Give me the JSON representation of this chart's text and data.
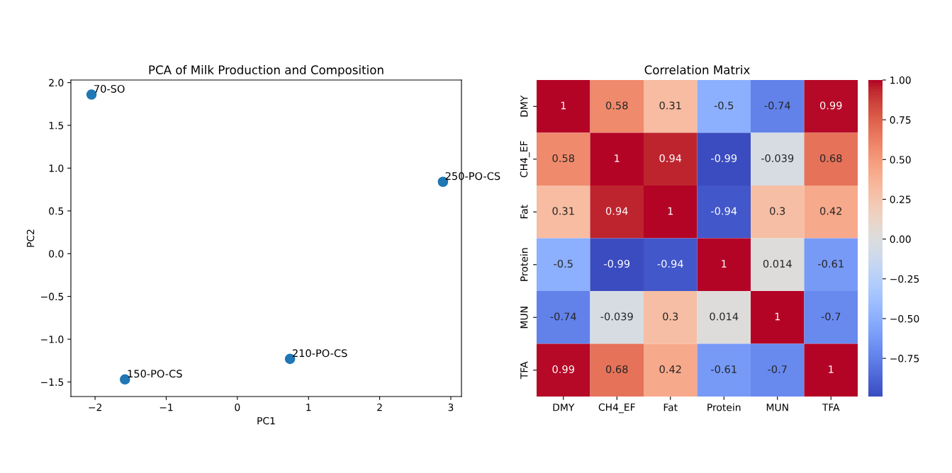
{
  "chart_data": [
    {
      "type": "scatter",
      "title": "PCA of Milk Production and Composition",
      "xlabel": "PC1",
      "ylabel": "PC2",
      "x": [
        -2.05,
        -1.58,
        0.74,
        2.89
      ],
      "series": [
        {
          "color": "#1f77b4",
          "values": [
            1.86,
            -1.47,
            -1.23,
            0.84
          ]
        }
      ],
      "marker": "circle",
      "xlim": [
        -2.34,
        3.15
      ],
      "xticks": [
        {
          "value": -2,
          "label": "−2"
        },
        {
          "value": -1,
          "label": "−1"
        },
        0,
        1,
        2,
        3
      ],
      "ylim": [
        -1.67,
        2.03
      ],
      "yticks": [
        {
          "value": -1.5,
          "label": "−1.5"
        },
        {
          "value": -1,
          "label": "−1.0"
        },
        {
          "value": -0.5,
          "label": "−0.5"
        },
        {
          "value": 0,
          "label": "0.0"
        },
        {
          "value": 0.5,
          "label": "0.5"
        },
        {
          "value": 1,
          "label": "1.0"
        },
        {
          "value": 1.5,
          "label": "1.5"
        },
        {
          "value": 2,
          "label": "2.0"
        }
      ],
      "annotations": [
        {
          "text": "70-SO",
          "x": -2.05,
          "y": 1.86
        },
        {
          "text": "150-PO-CS",
          "x": -1.58,
          "y": -1.47
        },
        {
          "text": "210-PO-CS",
          "x": 0.74,
          "y": -1.23
        },
        {
          "text": "250-PO-CS",
          "x": 2.89,
          "y": 0.84
        }
      ]
    },
    {
      "type": "heatmap",
      "title": "Correlation Matrix",
      "categories": [
        "DMY",
        "CH4_EF",
        "Fat",
        "Protein",
        "MUN",
        "TFA"
      ],
      "y_categories": [
        "DMY",
        "CH4_EF",
        "Fat",
        "Protein",
        "MUN",
        "TFA"
      ],
      "cells": [
        [
          1,
          0.58,
          0.31,
          -0.5,
          -0.74,
          0.99
        ],
        [
          0.58,
          1,
          0.94,
          -0.99,
          -0.039,
          0.68
        ],
        [
          0.31,
          0.94,
          1,
          -0.94,
          0.3,
          0.42
        ],
        [
          -0.5,
          -0.99,
          -0.94,
          1,
          0.014,
          -0.61
        ],
        [
          -0.74,
          -0.039,
          0.3,
          0.014,
          1,
          -0.7
        ],
        [
          0.99,
          0.68,
          0.42,
          -0.61,
          -0.7,
          1
        ]
      ],
      "data_labels": true,
      "clim": [
        -0.99,
        1.0
      ],
      "cticks": [
        {
          "value": -0.75,
          "label": "−0.75"
        },
        {
          "value": -0.5,
          "label": "−0.50"
        },
        {
          "value": -0.25,
          "label": "−0.25"
        },
        {
          "value": 0.0,
          "label": "0.00"
        },
        {
          "value": 0.25,
          "label": "0.25"
        },
        {
          "value": 0.5,
          "label": "0.50"
        },
        {
          "value": 0.75,
          "label": "0.75"
        },
        {
          "value": 1.0,
          "label": "1.00"
        }
      ]
    }
  ]
}
